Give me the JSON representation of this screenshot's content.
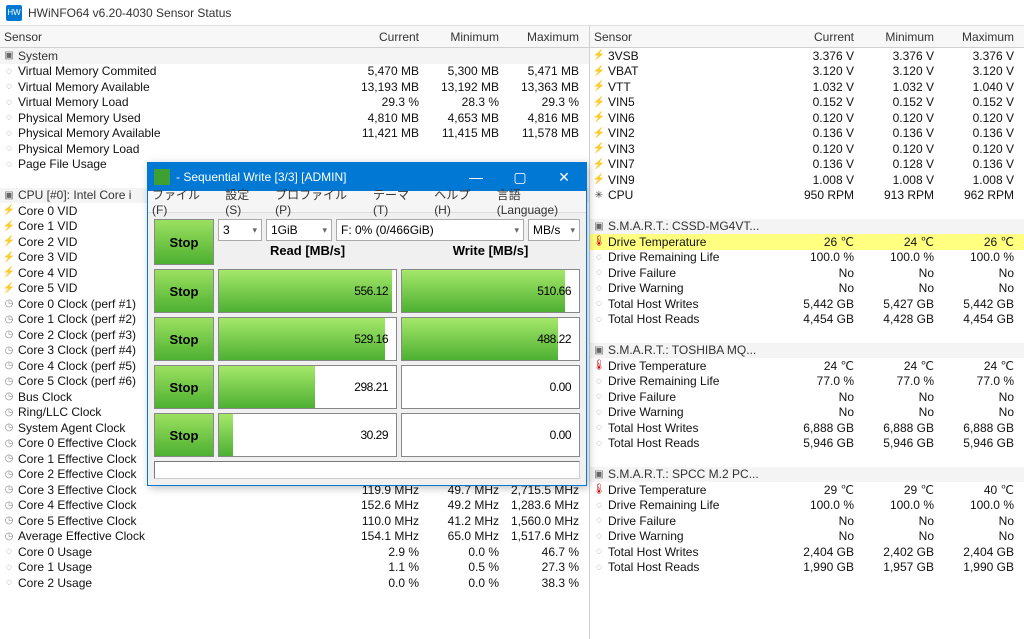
{
  "app": {
    "title": "HWiNFO64 v6.20-4030 Sensor Status",
    "icon_text": "HW"
  },
  "headers": {
    "sensor": "Sensor",
    "current": "Current",
    "minimum": "Minimum",
    "maximum": "Maximum"
  },
  "left_rows": [
    {
      "t": "group",
      "ic": "chip",
      "l": "System"
    },
    {
      "ic": "dash",
      "l": "Virtual Memory Commited",
      "c": "5,470 MB",
      "mn": "5,300 MB",
      "mx": "5,471 MB"
    },
    {
      "ic": "dash",
      "l": "Virtual Memory Available",
      "c": "13,193 MB",
      "mn": "13,192 MB",
      "mx": "13,363 MB"
    },
    {
      "ic": "dash",
      "l": "Virtual Memory Load",
      "c": "29.3 %",
      "mn": "28.3 %",
      "mx": "29.3 %"
    },
    {
      "ic": "dash",
      "l": "Physical Memory Used",
      "c": "4,810 MB",
      "mn": "4,653 MB",
      "mx": "4,816 MB"
    },
    {
      "ic": "dash",
      "l": "Physical Memory Available",
      "c": "11,421 MB",
      "mn": "11,415 MB",
      "mx": "11,578 MB"
    },
    {
      "ic": "dash",
      "l": "Physical Memory Load",
      "c": "",
      "mn": "",
      "mx": ""
    },
    {
      "ic": "dash",
      "l": "Page File Usage",
      "c": "",
      "mn": "",
      "mx": ""
    },
    {
      "t": "blank"
    },
    {
      "t": "group",
      "ic": "chip",
      "l": "CPU [#0]: Intel Core i"
    },
    {
      "ic": "bolt",
      "l": "Core 0 VID",
      "c": "",
      "mn": "",
      "mx": ""
    },
    {
      "ic": "bolt",
      "l": "Core 1 VID",
      "c": "",
      "mn": "",
      "mx": ""
    },
    {
      "ic": "bolt",
      "l": "Core 2 VID",
      "c": "",
      "mn": "",
      "mx": ""
    },
    {
      "ic": "bolt",
      "l": "Core 3 VID",
      "c": "",
      "mn": "",
      "mx": ""
    },
    {
      "ic": "bolt",
      "l": "Core 4 VID",
      "c": "",
      "mn": "",
      "mx": ""
    },
    {
      "ic": "bolt",
      "l": "Core 5 VID",
      "c": "",
      "mn": "",
      "mx": ""
    },
    {
      "ic": "clock",
      "l": "Core 0 Clock (perf #1)",
      "c": "",
      "mn": "",
      "mx": ""
    },
    {
      "ic": "clock",
      "l": "Core 1 Clock (perf #2)",
      "c": "",
      "mn": "",
      "mx": ""
    },
    {
      "ic": "clock",
      "l": "Core 2 Clock (perf #3)",
      "c": "",
      "mn": "",
      "mx": ""
    },
    {
      "ic": "clock",
      "l": "Core 3 Clock (perf #4)",
      "c": "",
      "mn": "",
      "mx": ""
    },
    {
      "ic": "clock",
      "l": "Core 4 Clock (perf #5)",
      "c": "",
      "mn": "",
      "mx": ""
    },
    {
      "ic": "clock",
      "l": "Core 5 Clock (perf #6)",
      "c": "",
      "mn": "",
      "mx": ""
    },
    {
      "ic": "clock",
      "l": "Bus Clock",
      "c": "",
      "mn": "",
      "mx": ""
    },
    {
      "ic": "clock",
      "l": "Ring/LLC Clock",
      "c": "",
      "mn": "",
      "mx": ""
    },
    {
      "ic": "clock",
      "l": "System Agent Clock",
      "c": "",
      "mn": "",
      "mx": ""
    },
    {
      "ic": "clock",
      "l": "Core 0 Effective Clock",
      "c": "",
      "mn": "",
      "mx": ""
    },
    {
      "ic": "clock",
      "l": "Core 1 Effective Clock",
      "c": "",
      "mn": "",
      "mx": ""
    },
    {
      "ic": "clock",
      "l": "Core 2 Effective Clock",
      "c": "117.3 MHz",
      "mn": "48.0 MHz",
      "mx": "1,941.8 MHz"
    },
    {
      "ic": "clock",
      "l": "Core 3 Effective Clock",
      "c": "119.9 MHz",
      "mn": "49.7 MHz",
      "mx": "2,715.5 MHz"
    },
    {
      "ic": "clock",
      "l": "Core 4 Effective Clock",
      "c": "152.6 MHz",
      "mn": "49.2 MHz",
      "mx": "1,283.6 MHz"
    },
    {
      "ic": "clock",
      "l": "Core 5 Effective Clock",
      "c": "110.0 MHz",
      "mn": "41.2 MHz",
      "mx": "1,560.0 MHz"
    },
    {
      "ic": "clock",
      "l": "Average Effective Clock",
      "c": "154.1 MHz",
      "mn": "65.0 MHz",
      "mx": "1,517.6 MHz"
    },
    {
      "ic": "dash",
      "l": "Core 0 Usage",
      "c": "2.9 %",
      "mn": "0.0 %",
      "mx": "46.7 %"
    },
    {
      "ic": "dash",
      "l": "Core 1 Usage",
      "c": "1.1 %",
      "mn": "0.5 %",
      "mx": "27.3 %"
    },
    {
      "ic": "dash",
      "l": "Core 2 Usage",
      "c": "0.0 %",
      "mn": "0.0 %",
      "mx": "38.3 %"
    }
  ],
  "right_rows": [
    {
      "ic": "bolt",
      "l": "3VSB",
      "c": "3.376 V",
      "mn": "3.376 V",
      "mx": "3.376 V"
    },
    {
      "ic": "bolt",
      "l": "VBAT",
      "c": "3.120 V",
      "mn": "3.120 V",
      "mx": "3.120 V"
    },
    {
      "ic": "bolt",
      "l": "VTT",
      "c": "1.032 V",
      "mn": "1.032 V",
      "mx": "1.040 V"
    },
    {
      "ic": "bolt",
      "l": "VIN5",
      "c": "0.152 V",
      "mn": "0.152 V",
      "mx": "0.152 V"
    },
    {
      "ic": "bolt",
      "l": "VIN6",
      "c": "0.120 V",
      "mn": "0.120 V",
      "mx": "0.120 V"
    },
    {
      "ic": "bolt",
      "l": "VIN2",
      "c": "0.136 V",
      "mn": "0.136 V",
      "mx": "0.136 V"
    },
    {
      "ic": "bolt",
      "l": "VIN3",
      "c": "0.120 V",
      "mn": "0.120 V",
      "mx": "0.120 V"
    },
    {
      "ic": "bolt",
      "l": "VIN7",
      "c": "0.136 V",
      "mn": "0.128 V",
      "mx": "0.136 V"
    },
    {
      "ic": "bolt",
      "l": "VIN9",
      "c": "1.008 V",
      "mn": "1.008 V",
      "mx": "1.008 V"
    },
    {
      "ic": "fan",
      "l": "CPU",
      "c": "950 RPM",
      "mn": "913 RPM",
      "mx": "962 RPM"
    },
    {
      "t": "blank"
    },
    {
      "t": "group",
      "ic": "chip",
      "l": "S.M.A.R.T.: CSSD-MG4VT..."
    },
    {
      "t": "hl",
      "ic": "therm",
      "l": "Drive Temperature",
      "c": "26 ℃",
      "mn": "24 ℃",
      "mx": "26 ℃"
    },
    {
      "ic": "dash",
      "l": "Drive Remaining Life",
      "c": "100.0 %",
      "mn": "100.0 %",
      "mx": "100.0 %"
    },
    {
      "ic": "dash",
      "l": "Drive Failure",
      "c": "No",
      "mn": "No",
      "mx": "No"
    },
    {
      "ic": "dash",
      "l": "Drive Warning",
      "c": "No",
      "mn": "No",
      "mx": "No"
    },
    {
      "ic": "dash",
      "l": "Total Host Writes",
      "c": "5,442 GB",
      "mn": "5,427 GB",
      "mx": "5,442 GB"
    },
    {
      "ic": "dash",
      "l": "Total Host Reads",
      "c": "4,454 GB",
      "mn": "4,428 GB",
      "mx": "4,454 GB"
    },
    {
      "t": "blank"
    },
    {
      "t": "group",
      "ic": "chip",
      "l": "S.M.A.R.T.: TOSHIBA MQ..."
    },
    {
      "ic": "therm",
      "l": "Drive Temperature",
      "c": "24 ℃",
      "mn": "24 ℃",
      "mx": "24 ℃"
    },
    {
      "ic": "dash",
      "l": "Drive Remaining Life",
      "c": "77.0 %",
      "mn": "77.0 %",
      "mx": "77.0 %"
    },
    {
      "ic": "dash",
      "l": "Drive Failure",
      "c": "No",
      "mn": "No",
      "mx": "No"
    },
    {
      "ic": "dash",
      "l": "Drive Warning",
      "c": "No",
      "mn": "No",
      "mx": "No"
    },
    {
      "ic": "dash",
      "l": "Total Host Writes",
      "c": "6,888 GB",
      "mn": "6,888 GB",
      "mx": "6,888 GB"
    },
    {
      "ic": "dash",
      "l": "Total Host Reads",
      "c": "5,946 GB",
      "mn": "5,946 GB",
      "mx": "5,946 GB"
    },
    {
      "t": "blank"
    },
    {
      "t": "group",
      "ic": "chip",
      "l": "S.M.A.R.T.: SPCC M.2 PC..."
    },
    {
      "ic": "therm",
      "l": "Drive Temperature",
      "c": "29 ℃",
      "mn": "29 ℃",
      "mx": "40 ℃"
    },
    {
      "ic": "dash",
      "l": "Drive Remaining Life",
      "c": "100.0 %",
      "mn": "100.0 %",
      "mx": "100.0 %"
    },
    {
      "ic": "dash",
      "l": "Drive Failure",
      "c": "No",
      "mn": "No",
      "mx": "No"
    },
    {
      "ic": "dash",
      "l": "Drive Warning",
      "c": "No",
      "mn": "No",
      "mx": "No"
    },
    {
      "ic": "dash",
      "l": "Total Host Writes",
      "c": "2,404 GB",
      "mn": "2,402 GB",
      "mx": "2,404 GB"
    },
    {
      "ic": "dash",
      "l": "Total Host Reads",
      "c": "1,990 GB",
      "mn": "1,957 GB",
      "mx": "1,990 GB"
    }
  ],
  "dlg": {
    "title": " - Sequential Write [3/3] [ADMIN]",
    "menu": [
      "ファイル(F)",
      "設定(S)",
      "プロファイル(P)",
      "テーマ(T)",
      "ヘルプ(H)",
      "言語(Language)"
    ],
    "stop": "Stop",
    "sel_runs": "3",
    "sel_size": "1GiB",
    "sel_drive": "F: 0% (0/466GiB)",
    "sel_unit": "MB/s",
    "hdr_read": "Read [MB/s]",
    "hdr_write": "Write [MB/s]",
    "rows": [
      {
        "read": "556.12",
        "rbar": 98,
        "write": "510.66",
        "wbar": 92
      },
      {
        "read": "529.16",
        "rbar": 94,
        "write": "488.22",
        "wbar": 88
      },
      {
        "read": "298.21",
        "rbar": 54,
        "write": "0.00",
        "wbar": 0
      },
      {
        "read": "30.29",
        "rbar": 8,
        "write": "0.00",
        "wbar": 0
      }
    ]
  },
  "icons": {
    "chip": "▣",
    "bolt": "⚡",
    "clock": "◷",
    "therm": "🌡",
    "dash": "◌",
    "fan": "✳"
  }
}
